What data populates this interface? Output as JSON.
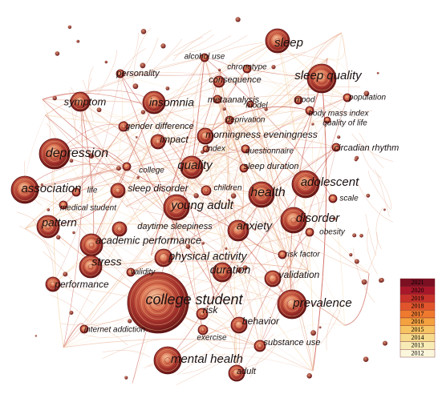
{
  "palette": {
    "node_dark": "#5a1010",
    "node_mid": "#a83a2a",
    "node_light": "#f2c49a",
    "edge_warm": "#e8a88a",
    "edge_light": "#f6d8b0",
    "edge_red": "#c0392b"
  },
  "legend": {
    "years": [
      "2021",
      "2020",
      "2019",
      "2018",
      "2017",
      "2016",
      "2015",
      "2014",
      "2013",
      "2012"
    ],
    "colors": [
      "#7b1023",
      "#a8182a",
      "#c7322a",
      "#e0552c",
      "#ee7a30",
      "#f4a240",
      "#f6c463",
      "#f7db8c",
      "#f8ecb6",
      "#fbf7dc"
    ]
  },
  "keywords": [
    {
      "label": "sleep",
      "weight": 4
    },
    {
      "label": "alcohol use",
      "weight": 1
    },
    {
      "label": "chronotype",
      "weight": 1
    },
    {
      "label": "sleep quality",
      "weight": 4
    },
    {
      "label": "personality",
      "weight": 1
    },
    {
      "label": "consequence",
      "weight": 1
    },
    {
      "label": "symptom",
      "weight": 2
    },
    {
      "label": "insomnia",
      "weight": 3
    },
    {
      "label": "metaanalysis",
      "weight": 1
    },
    {
      "label": "mood",
      "weight": 1
    },
    {
      "label": "population",
      "weight": 1
    },
    {
      "label": "model",
      "weight": 1
    },
    {
      "label": "body mass index",
      "weight": 1
    },
    {
      "label": "deprivation",
      "weight": 1
    },
    {
      "label": "quality of life",
      "weight": 1
    },
    {
      "label": "gender difference",
      "weight": 1
    },
    {
      "label": "morningness eveningness",
      "weight": 2
    },
    {
      "label": "depression",
      "weight": 4
    },
    {
      "label": "impact",
      "weight": 1
    },
    {
      "label": "index",
      "weight": 1
    },
    {
      "label": "questionnaire",
      "weight": 1
    },
    {
      "label": "circadian rhythm",
      "weight": 1
    },
    {
      "label": "college",
      "weight": 1
    },
    {
      "label": "quality",
      "weight": 2
    },
    {
      "label": "sleep duration",
      "weight": 1
    },
    {
      "label": "adolescent",
      "weight": 3
    },
    {
      "label": "association",
      "weight": 3
    },
    {
      "label": "life",
      "weight": 1
    },
    {
      "label": "sleep disorder",
      "weight": 1
    },
    {
      "label": "children",
      "weight": 1
    },
    {
      "label": "health",
      "weight": 3
    },
    {
      "label": "scale",
      "weight": 1
    },
    {
      "label": "medical student",
      "weight": 1
    },
    {
      "label": "young adult",
      "weight": 2
    },
    {
      "label": "pattern",
      "weight": 2
    },
    {
      "label": "daytime sleepiness",
      "weight": 1
    },
    {
      "label": "anxiety",
      "weight": 2
    },
    {
      "label": "disorder",
      "weight": 3
    },
    {
      "label": "obesity",
      "weight": 1
    },
    {
      "label": "academic performance",
      "weight": 2
    },
    {
      "label": "risk factor",
      "weight": 1
    },
    {
      "label": "stress",
      "weight": 2
    },
    {
      "label": "physical activity",
      "weight": 2
    },
    {
      "label": "validity",
      "weight": 1
    },
    {
      "label": "duration",
      "weight": 2
    },
    {
      "label": "validation",
      "weight": 1
    },
    {
      "label": "performance",
      "weight": 1
    },
    {
      "label": "college student",
      "weight": 5
    },
    {
      "label": "prevalence",
      "weight": 3
    },
    {
      "label": "risk",
      "weight": 1
    },
    {
      "label": "behavior",
      "weight": 1
    },
    {
      "label": "internet addiction",
      "weight": 1
    },
    {
      "label": "exercise",
      "weight": 1
    },
    {
      "label": "substance use",
      "weight": 1
    },
    {
      "label": "mental health",
      "weight": 3
    },
    {
      "label": "adult",
      "weight": 1
    }
  ]
}
